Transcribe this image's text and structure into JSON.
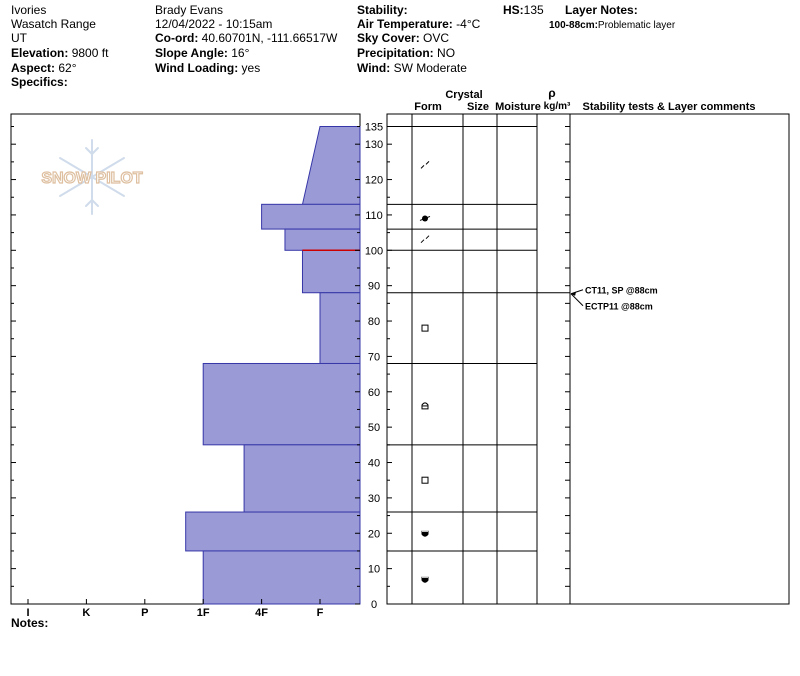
{
  "site": {
    "location": "Ivories",
    "range": "Wasatch Range",
    "state": "UT",
    "elevation_label": "Elevation:",
    "elevation_value": "9800 ft",
    "aspect_label": "Aspect:",
    "aspect_value": "62°",
    "specifics_label": "Specifics:"
  },
  "observer": {
    "name": "Brady Evans",
    "datetime": "12/04/2022 - 10:15am",
    "coord_label": "Co-ord:",
    "coord_value": "40.60701N, -111.66517W",
    "slope_label": "Slope Angle:",
    "slope_value": "16°",
    "wind_loading_label": "Wind Loading:",
    "wind_loading_value": "yes"
  },
  "conditions": {
    "stability_label": "Stability:",
    "air_temp_label": "Air Temperature:",
    "air_temp_value": "-4°C",
    "sky_label": "Sky Cover:",
    "sky_value": "OVC",
    "precip_label": "Precipitation:",
    "precip_value": "NO",
    "wind_label": "Wind:",
    "wind_value": "SW Moderate"
  },
  "hs": {
    "label": "HS:",
    "value": "135"
  },
  "layer_notes": {
    "title": "Layer Notes:",
    "entries": [
      {
        "range": "100-88cm:",
        "text": "Problematic layer"
      }
    ]
  },
  "logo_text": "SNOW PILOT",
  "notes_label": "Notes:",
  "columns": {
    "form": "Form",
    "crystal": "Crystal",
    "size": "Size",
    "moisture": "Moisture",
    "rho": "ρ",
    "density_unit": "kg/m³",
    "stability": "Stability tests & Layer comments"
  },
  "chart_data": {
    "type": "bar",
    "orientation": "horizontal",
    "title": "",
    "ylabel": "",
    "xlabel": "",
    "x_categories": [
      "I",
      "K",
      "P",
      "1F",
      "4F",
      "F"
    ],
    "x_values": [
      0,
      1,
      2,
      3,
      4,
      5
    ],
    "y_ticks": [
      0,
      10,
      20,
      30,
      40,
      50,
      60,
      70,
      80,
      90,
      100,
      110,
      120,
      130,
      135
    ],
    "ylim": [
      0,
      135
    ],
    "bar_color": "#9a9ad6",
    "edge_color": "#3636a8",
    "layers": [
      {
        "top": 135,
        "bottom": 113,
        "hardness_top": 5.0,
        "hardness_bottom": 4.7
      },
      {
        "top": 113,
        "bottom": 106,
        "hardness": 4.0
      },
      {
        "top": 106,
        "bottom": 100,
        "hardness": 4.4
      },
      {
        "top": 100,
        "bottom": 88,
        "hardness": 4.7
      },
      {
        "top": 88,
        "bottom": 68,
        "hardness": 5.0
      },
      {
        "top": 68,
        "bottom": 45,
        "hardness": 3.0
      },
      {
        "top": 45,
        "bottom": 26,
        "hardness": 3.7
      },
      {
        "top": 26,
        "bottom": 15,
        "hardness": 2.7
      },
      {
        "top": 15,
        "bottom": 0,
        "hardness": 3.0
      }
    ],
    "marker_line": {
      "depth": 100,
      "color": "#cc0000"
    },
    "crystal_forms": [
      {
        "depth": 124,
        "symbol": "decomposing"
      },
      {
        "depth": 109,
        "symbol": "rimed"
      },
      {
        "depth": 103,
        "symbol": "decomposing"
      },
      {
        "depth": 78,
        "symbol": "faceted"
      },
      {
        "depth": 56,
        "symbol": "faceted-rounded"
      },
      {
        "depth": 35,
        "symbol": "faceted"
      },
      {
        "depth": 20,
        "symbol": "melt-form"
      },
      {
        "depth": 7,
        "symbol": "melt-form"
      }
    ],
    "layer_boundaries": [
      135,
      113,
      106,
      100,
      88,
      68,
      45,
      26,
      15,
      0
    ],
    "stability_tests": [
      {
        "depth": 88,
        "text": "CT11, SP @88cm"
      },
      {
        "depth": 88,
        "text": "ECTP11 @88cm"
      }
    ]
  }
}
